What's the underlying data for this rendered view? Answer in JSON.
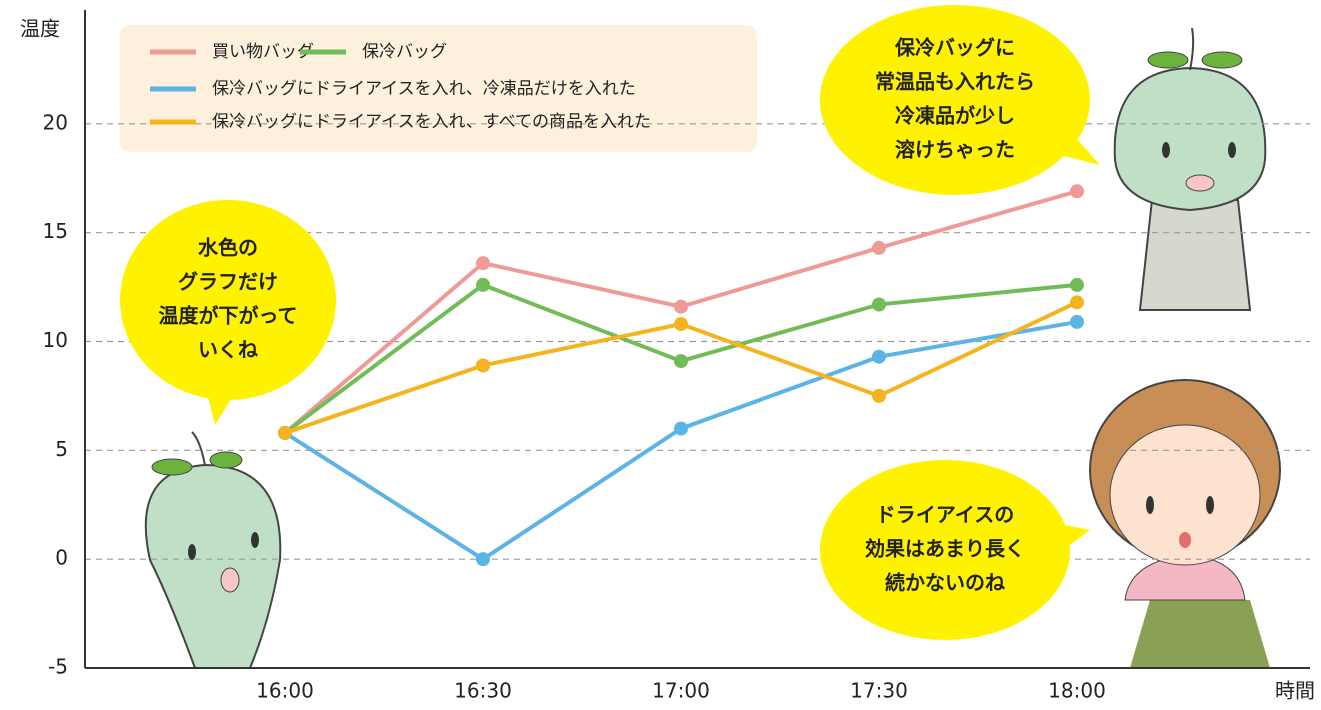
{
  "chart_data": {
    "type": "line",
    "y_label": "温度",
    "x_label": "時間",
    "categories": [
      "16:00",
      "16:30",
      "17:00",
      "17:30",
      "18:00"
    ],
    "series": [
      {
        "name": "買い物バッグ",
        "color": "#ef9a96",
        "values": [
          5.8,
          13.6,
          11.6,
          14.3,
          16.9
        ]
      },
      {
        "name": "保冷バッグ",
        "color": "#72bc57",
        "values": [
          5.8,
          12.6,
          9.1,
          11.7,
          12.6
        ]
      },
      {
        "name": "保冷バッグにドライアイスを入れ、冷凍品だけを入れた",
        "color": "#5cb3e5",
        "values": [
          5.8,
          0,
          6.0,
          9.3,
          10.9
        ]
      },
      {
        "name": "保冷バッグにドライアイスを入れ、すべての商品を入れた",
        "color": "#f5b31f",
        "values": [
          5.8,
          8.9,
          10.8,
          7.5,
          11.8
        ]
      }
    ],
    "ylim": [
      -5,
      25
    ],
    "yticks": [
      -5,
      0,
      5,
      10,
      15,
      20
    ],
    "grid": true,
    "annotations": [
      {
        "lines": [
          "水色の",
          "グラフだけ",
          "温度が下がって",
          "いくね"
        ]
      },
      {
        "lines": [
          "保冷バッグに",
          "常温品も入れたら",
          "冷凍品が少し",
          "溶けちゃった"
        ]
      },
      {
        "lines": [
          "ドライアイスの",
          "効果はあまり長く",
          "続かないのね"
        ]
      }
    ]
  }
}
